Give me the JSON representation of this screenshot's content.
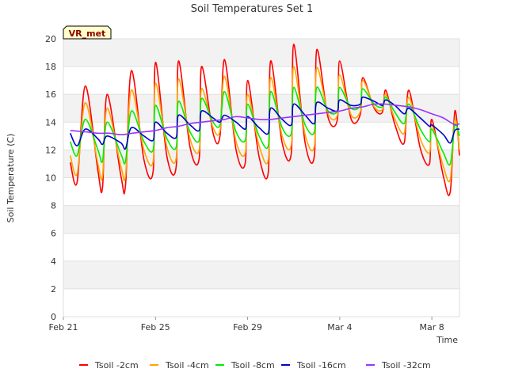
{
  "chart_data": {
    "type": "line",
    "title": "Soil Temperatures Set 1",
    "xlabel": "Time",
    "ylabel": "Soil Temperature (C)",
    "badge": "VR_met",
    "ylim": [
      0,
      20
    ],
    "yticks": [
      0,
      2,
      4,
      6,
      8,
      10,
      12,
      14,
      16,
      18,
      20
    ],
    "xlim": [
      0,
      17.2
    ],
    "xticks": [
      {
        "value": 0,
        "label": "Feb 21"
      },
      {
        "value": 4,
        "label": "Feb 25"
      },
      {
        "value": 8,
        "label": "Feb 29"
      },
      {
        "value": 12,
        "label": "Mar 4"
      },
      {
        "value": 16,
        "label": "Mar 8"
      }
    ],
    "grid": true,
    "legend_position": "bottom",
    "x_units": "days since Feb 21",
    "series": [
      {
        "name": "Tsoil -2cm",
        "color": "#ff0000",
        "points": [
          [
            0.3,
            11.1
          ],
          [
            0.6,
            9.7
          ],
          [
            0.95,
            16.6
          ],
          [
            1.5,
            10.5
          ],
          [
            1.7,
            9.3
          ],
          [
            1.9,
            16.0
          ],
          [
            2.5,
            10.1
          ],
          [
            2.7,
            9.5
          ],
          [
            2.95,
            17.7
          ],
          [
            3.5,
            11.3
          ],
          [
            3.9,
            10.5
          ],
          [
            4.0,
            18.3
          ],
          [
            4.5,
            11.5
          ],
          [
            4.9,
            10.8
          ],
          [
            5.0,
            18.4
          ],
          [
            5.5,
            12.2
          ],
          [
            5.9,
            11.4
          ],
          [
            6.0,
            18.0
          ],
          [
            6.5,
            13.2
          ],
          [
            6.8,
            13.0
          ],
          [
            7.0,
            18.5
          ],
          [
            7.5,
            12.0
          ],
          [
            7.9,
            11.1
          ],
          [
            8.0,
            17.0
          ],
          [
            8.5,
            11.5
          ],
          [
            8.9,
            10.4
          ],
          [
            9.0,
            18.4
          ],
          [
            9.5,
            12.5
          ],
          [
            9.9,
            11.8
          ],
          [
            10.0,
            19.6
          ],
          [
            10.5,
            12.5
          ],
          [
            10.9,
            11.6
          ],
          [
            11.0,
            19.2
          ],
          [
            11.5,
            14.3
          ],
          [
            11.9,
            14.2
          ],
          [
            12.0,
            18.4
          ],
          [
            12.5,
            14.2
          ],
          [
            12.9,
            14.6
          ],
          [
            13.0,
            17.2
          ],
          [
            13.5,
            15.0
          ],
          [
            13.85,
            14.7
          ],
          [
            14.0,
            16.3
          ],
          [
            14.4,
            13.8
          ],
          [
            14.8,
            12.5
          ],
          [
            15.0,
            16.3
          ],
          [
            15.5,
            12.1
          ],
          [
            15.9,
            11.0
          ],
          [
            16.0,
            14.2
          ],
          [
            16.5,
            10.1
          ],
          [
            16.8,
            9.0
          ],
          [
            17.0,
            14.8
          ],
          [
            17.2,
            11.6
          ]
        ]
      },
      {
        "name": "Tsoil -4cm",
        "color": "#ffa500",
        "points": [
          [
            0.3,
            11.6
          ],
          [
            0.6,
            10.3
          ],
          [
            0.95,
            15.4
          ],
          [
            1.5,
            11.0
          ],
          [
            1.7,
            10.1
          ],
          [
            1.9,
            15.0
          ],
          [
            2.5,
            10.8
          ],
          [
            2.7,
            10.2
          ],
          [
            2.95,
            16.3
          ],
          [
            3.5,
            12.0
          ],
          [
            3.9,
            11.2
          ],
          [
            4.0,
            16.8
          ],
          [
            4.5,
            12.2
          ],
          [
            4.9,
            11.4
          ],
          [
            5.0,
            17.1
          ],
          [
            5.5,
            12.8
          ],
          [
            5.9,
            12.0
          ],
          [
            6.0,
            16.4
          ],
          [
            6.5,
            13.6
          ],
          [
            6.8,
            13.4
          ],
          [
            7.0,
            17.3
          ],
          [
            7.5,
            12.6
          ],
          [
            7.9,
            11.8
          ],
          [
            8.0,
            16.0
          ],
          [
            8.5,
            12.3
          ],
          [
            8.9,
            11.3
          ],
          [
            9.0,
            17.2
          ],
          [
            9.5,
            13.0
          ],
          [
            9.9,
            12.4
          ],
          [
            10.0,
            18.0
          ],
          [
            10.5,
            13.1
          ],
          [
            10.9,
            12.3
          ],
          [
            11.0,
            17.9
          ],
          [
            11.5,
            14.6
          ],
          [
            11.9,
            14.5
          ],
          [
            12.0,
            17.4
          ],
          [
            12.5,
            14.5
          ],
          [
            12.9,
            14.8
          ],
          [
            13.0,
            17.0
          ],
          [
            13.5,
            15.1
          ],
          [
            13.85,
            14.9
          ],
          [
            14.0,
            16.0
          ],
          [
            14.4,
            14.2
          ],
          [
            14.8,
            13.2
          ],
          [
            15.0,
            15.8
          ],
          [
            15.5,
            12.8
          ],
          [
            15.9,
            11.8
          ],
          [
            16.0,
            13.8
          ],
          [
            16.5,
            10.8
          ],
          [
            16.8,
            9.9
          ],
          [
            17.0,
            14.2
          ],
          [
            17.2,
            12.0
          ]
        ]
      },
      {
        "name": "Tsoil -8cm",
        "color": "#00ee00",
        "points": [
          [
            0.3,
            12.6
          ],
          [
            0.6,
            11.6
          ],
          [
            0.95,
            14.2
          ],
          [
            1.5,
            12.0
          ],
          [
            1.7,
            11.2
          ],
          [
            1.9,
            14.0
          ],
          [
            2.5,
            11.7
          ],
          [
            2.7,
            11.2
          ],
          [
            2.95,
            14.8
          ],
          [
            3.5,
            12.6
          ],
          [
            3.9,
            12.0
          ],
          [
            4.0,
            15.2
          ],
          [
            4.5,
            12.8
          ],
          [
            4.9,
            12.2
          ],
          [
            5.0,
            15.5
          ],
          [
            5.5,
            13.3
          ],
          [
            5.9,
            12.7
          ],
          [
            6.0,
            15.7
          ],
          [
            6.5,
            14.0
          ],
          [
            6.8,
            13.8
          ],
          [
            7.0,
            16.2
          ],
          [
            7.5,
            13.3
          ],
          [
            7.9,
            12.7
          ],
          [
            8.0,
            15.3
          ],
          [
            8.5,
            13.0
          ],
          [
            8.9,
            12.3
          ],
          [
            9.0,
            16.2
          ],
          [
            9.5,
            13.6
          ],
          [
            9.9,
            13.2
          ],
          [
            10.0,
            16.5
          ],
          [
            10.5,
            13.8
          ],
          [
            10.9,
            13.3
          ],
          [
            11.0,
            16.5
          ],
          [
            11.5,
            14.8
          ],
          [
            11.9,
            14.8
          ],
          [
            12.0,
            16.5
          ],
          [
            12.5,
            15.0
          ],
          [
            12.9,
            15.2
          ],
          [
            13.0,
            16.4
          ],
          [
            13.5,
            15.3
          ],
          [
            13.85,
            15.1
          ],
          [
            14.0,
            15.8
          ],
          [
            14.4,
            14.7
          ],
          [
            14.8,
            13.9
          ],
          [
            15.0,
            15.3
          ],
          [
            15.5,
            13.5
          ],
          [
            15.9,
            12.6
          ],
          [
            16.0,
            13.5
          ],
          [
            16.5,
            11.8
          ],
          [
            16.8,
            11.0
          ],
          [
            17.0,
            13.8
          ],
          [
            17.2,
            13.0
          ]
        ]
      },
      {
        "name": "Tsoil -16cm",
        "color": "#0000cc",
        "points": [
          [
            0.3,
            13.2
          ],
          [
            0.6,
            12.3
          ],
          [
            0.95,
            13.5
          ],
          [
            1.5,
            12.8
          ],
          [
            1.7,
            12.4
          ],
          [
            1.9,
            13.0
          ],
          [
            2.5,
            12.5
          ],
          [
            2.7,
            12.1
          ],
          [
            2.95,
            13.6
          ],
          [
            3.5,
            13.0
          ],
          [
            3.9,
            12.7
          ],
          [
            4.0,
            14.0
          ],
          [
            4.5,
            13.2
          ],
          [
            4.9,
            12.9
          ],
          [
            5.0,
            14.5
          ],
          [
            5.5,
            13.8
          ],
          [
            5.9,
            13.4
          ],
          [
            6.0,
            14.8
          ],
          [
            6.5,
            14.3
          ],
          [
            6.8,
            14.0
          ],
          [
            7.0,
            14.5
          ],
          [
            7.5,
            14.0
          ],
          [
            7.9,
            13.5
          ],
          [
            8.0,
            14.4
          ],
          [
            8.5,
            13.6
          ],
          [
            8.9,
            13.2
          ],
          [
            9.0,
            15.0
          ],
          [
            9.5,
            14.2
          ],
          [
            9.9,
            13.8
          ],
          [
            10.0,
            15.3
          ],
          [
            10.5,
            14.5
          ],
          [
            10.9,
            13.9
          ],
          [
            11.0,
            15.4
          ],
          [
            11.5,
            15.0
          ],
          [
            11.9,
            14.8
          ],
          [
            12.0,
            15.6
          ],
          [
            12.5,
            15.2
          ],
          [
            12.9,
            15.3
          ],
          [
            13.0,
            15.8
          ],
          [
            13.5,
            15.5
          ],
          [
            13.85,
            15.2
          ],
          [
            14.0,
            15.6
          ],
          [
            14.4,
            15.2
          ],
          [
            14.8,
            14.6
          ],
          [
            15.0,
            15.0
          ],
          [
            15.5,
            14.3
          ],
          [
            15.9,
            13.7
          ],
          [
            16.0,
            13.8
          ],
          [
            16.5,
            13.1
          ],
          [
            16.8,
            12.5
          ],
          [
            17.0,
            13.4
          ],
          [
            17.2,
            13.5
          ]
        ]
      },
      {
        "name": "Tsoil -32cm",
        "color": "#9933ff",
        "points": [
          [
            0.3,
            13.4
          ],
          [
            1.0,
            13.3
          ],
          [
            1.5,
            13.2
          ],
          [
            2.0,
            13.2
          ],
          [
            2.5,
            13.1
          ],
          [
            3.0,
            13.2
          ],
          [
            3.5,
            13.3
          ],
          [
            4.0,
            13.4
          ],
          [
            4.5,
            13.6
          ],
          [
            5.0,
            13.7
          ],
          [
            5.5,
            13.9
          ],
          [
            6.0,
            14.0
          ],
          [
            6.5,
            14.1
          ],
          [
            7.0,
            14.2
          ],
          [
            7.5,
            14.4
          ],
          [
            8.0,
            14.3
          ],
          [
            8.5,
            14.2
          ],
          [
            9.0,
            14.2
          ],
          [
            9.5,
            14.3
          ],
          [
            10.0,
            14.4
          ],
          [
            10.5,
            14.5
          ],
          [
            11.0,
            14.6
          ],
          [
            11.5,
            14.7
          ],
          [
            12.0,
            14.8
          ],
          [
            12.5,
            15.0
          ],
          [
            13.0,
            15.1
          ],
          [
            13.5,
            15.3
          ],
          [
            14.0,
            15.3
          ],
          [
            14.5,
            15.2
          ],
          [
            15.0,
            15.1
          ],
          [
            15.5,
            14.9
          ],
          [
            16.0,
            14.6
          ],
          [
            16.5,
            14.3
          ],
          [
            17.0,
            13.8
          ],
          [
            17.2,
            13.9
          ]
        ]
      }
    ]
  }
}
